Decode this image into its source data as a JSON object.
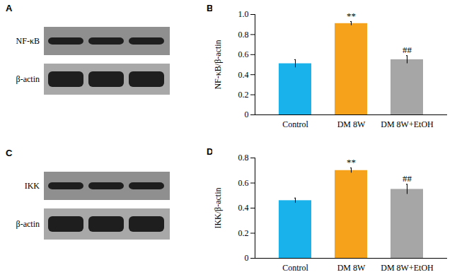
{
  "chart_data": [
    {
      "type": "bar",
      "panel": "B",
      "y_label": "NF-κB/β-actin",
      "categories": [
        "Control",
        "DM 8W",
        "DM 8W+EtOH"
      ],
      "values": [
        0.51,
        0.91,
        0.55
      ],
      "errors": [
        0.04,
        0.02,
        0.04
      ],
      "annotations": [
        null,
        "**",
        "##"
      ],
      "colors": [
        "#1ab2ea",
        "#f7a21b",
        "#a6a6a6"
      ],
      "ylim": [
        0,
        1.0
      ],
      "yticks": [
        0,
        0.2,
        0.4,
        0.6,
        0.8,
        {
          "value": 1.0,
          "label": "1.0"
        }
      ]
    },
    {
      "type": "bar",
      "panel": "D",
      "y_label": "IKK/β-actin",
      "categories": [
        "Control",
        "DM 8W",
        "DM 8W+EtOH"
      ],
      "values": [
        0.46,
        0.7,
        0.55
      ],
      "errors": [
        0.02,
        0.02,
        0.04
      ],
      "annotations": [
        null,
        "**",
        "##"
      ],
      "colors": [
        "#1ab2ea",
        "#f7a21b",
        "#a6a6a6"
      ],
      "ylim": [
        0,
        0.8
      ],
      "yticks": [
        0,
        0.2,
        0.4,
        0.6,
        0.8
      ]
    }
  ],
  "blots": [
    {
      "panel": "A",
      "bands": [
        "NF-κB",
        "β-actin"
      ]
    },
    {
      "panel": "C",
      "bands": [
        "IKK",
        "β-actin"
      ]
    }
  ]
}
